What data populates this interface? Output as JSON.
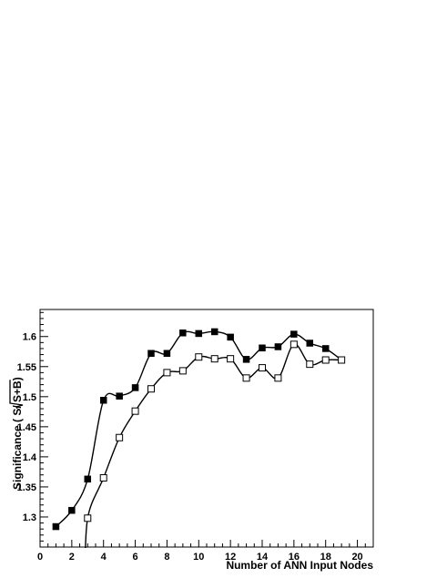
{
  "chart_data": {
    "type": "line",
    "title": "",
    "xlabel": "Number of ANN Input Nodes",
    "ylabel": {
      "prefix": "Significance ( S/ ",
      "radicand": "S+B",
      "suffix": ")"
    },
    "xlim": [
      0,
      21
    ],
    "ylim": [
      1.25,
      1.645
    ],
    "x_ticks": [
      0,
      2,
      4,
      6,
      8,
      10,
      12,
      14,
      16,
      18,
      20
    ],
    "y_ticks": [
      1.3,
      1.35,
      1.4,
      1.45,
      1.5,
      1.55,
      1.6
    ],
    "y_tick_labels": [
      "1.3",
      "1.35",
      "1.4",
      "1.45",
      "1.5",
      "1.55",
      "1.6"
    ],
    "grid": false,
    "legend": "none",
    "series": [
      {
        "marker": "filled-square",
        "color": "#000000",
        "x": [
          1,
          2,
          3,
          4,
          5,
          6,
          7,
          8,
          9,
          10,
          11,
          12,
          13,
          14,
          15,
          16,
          17,
          18,
          19
        ],
        "y": [
          1.284,
          1.311,
          1.363,
          1.494,
          1.501,
          1.515,
          1.572,
          1.572,
          1.606,
          1.605,
          1.608,
          1.599,
          1.562,
          1.581,
          1.583,
          1.604,
          1.589,
          1.58,
          1.561
        ]
      },
      {
        "marker": "open-square",
        "color": "#000000",
        "x": [
          3,
          4,
          5,
          6,
          7,
          8,
          9,
          10,
          11,
          12,
          13,
          14,
          15,
          16,
          17,
          18,
          19
        ],
        "y": [
          1.298,
          1.365,
          1.432,
          1.476,
          1.513,
          1.54,
          1.543,
          1.566,
          1.563,
          1.563,
          1.531,
          1.548,
          1.531,
          1.587,
          1.554,
          1.561,
          1.561
        ]
      }
    ]
  }
}
